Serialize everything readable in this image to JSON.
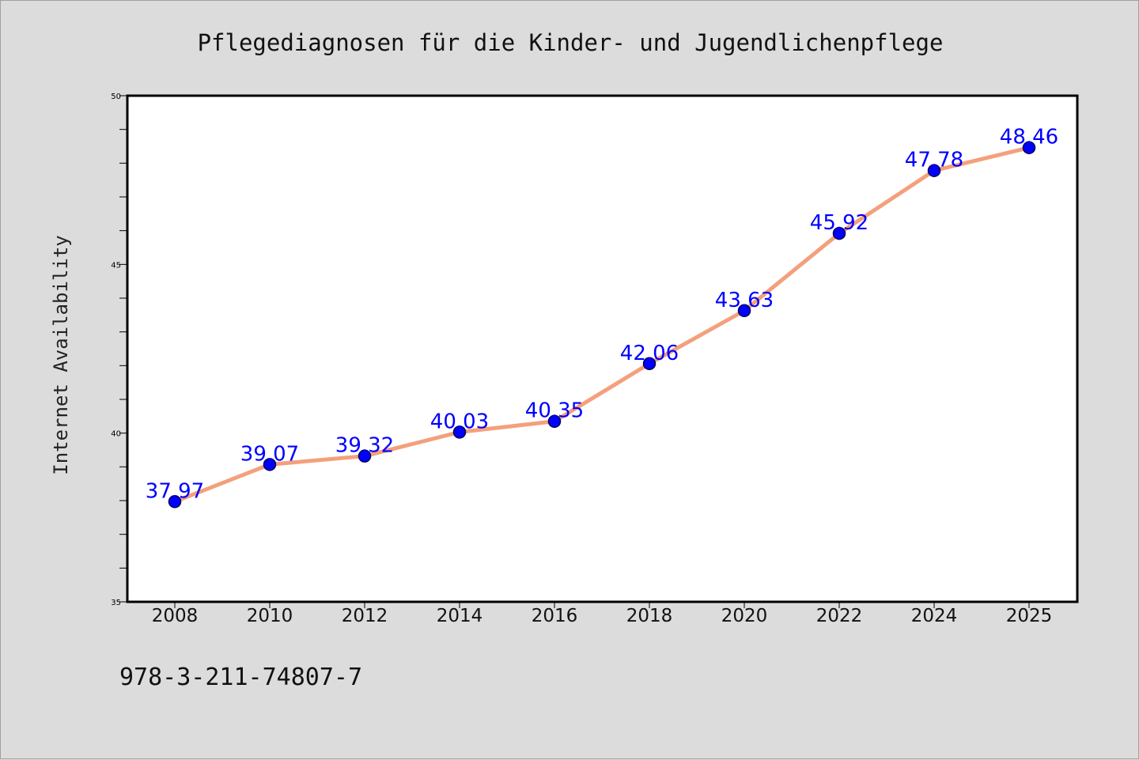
{
  "chart_data": {
    "type": "line",
    "title": "Pflegediagnosen für die Kinder- und Jugendlichenpflege",
    "xlabel": "",
    "ylabel": "Internet Availability",
    "categories": [
      "2008",
      "2010",
      "2012",
      "2014",
      "2016",
      "2018",
      "2020",
      "2022",
      "2024",
      "2025"
    ],
    "series": [
      {
        "values": [
          37.97,
          39.07,
          39.32,
          40.03,
          40.35,
          42.06,
          43.63,
          45.92,
          47.78,
          48.46
        ],
        "labels": [
          "37.97",
          "39.07",
          "39.32",
          "40.03",
          "40.35",
          "42.06",
          "43.63",
          "45.92",
          "47.78",
          "48.46"
        ]
      }
    ],
    "ylim": [
      35,
      50
    ],
    "yticks": [
      35,
      40,
      45,
      50
    ],
    "ytick_labels": [
      "35",
      "40",
      "45",
      "50"
    ],
    "grid": false,
    "line_color": "#f4a07c",
    "marker_color": "#0000ff",
    "label_color": "#0000ff"
  },
  "footer": {
    "isbn": "978-3-211-74807-7"
  }
}
